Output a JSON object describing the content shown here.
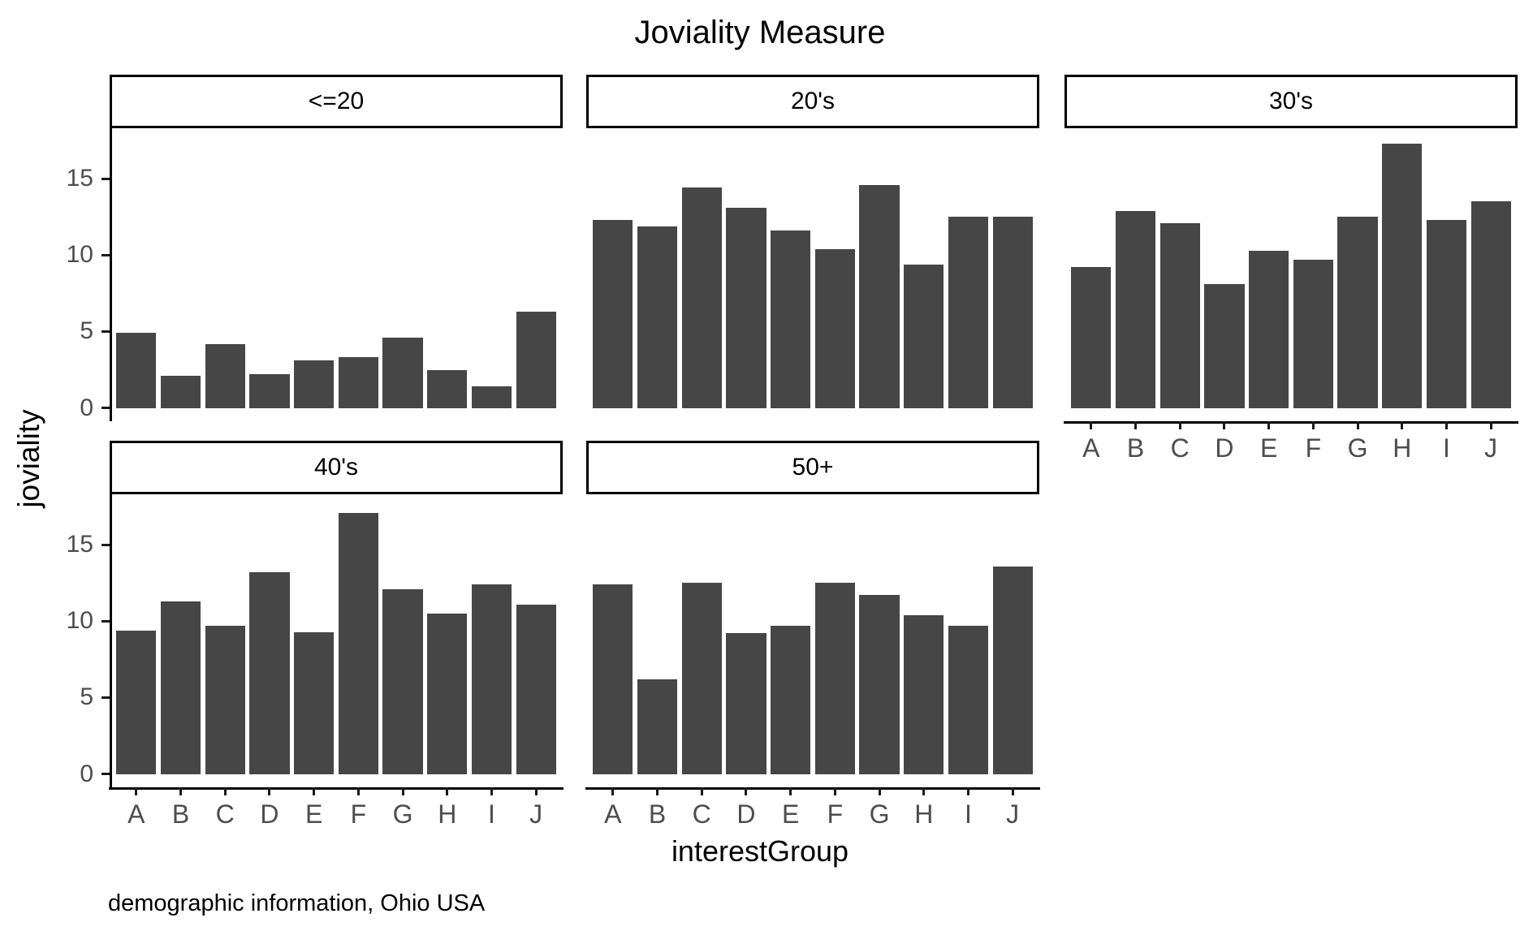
{
  "title": "Joviality Measure",
  "y_axis": {
    "title": "joviality",
    "tick_labels": [
      "0",
      "5",
      "10",
      "15"
    ],
    "tick_values": [
      0,
      5,
      10,
      15
    ]
  },
  "x_axis": {
    "title": "interestGroup"
  },
  "caption": "demographic information, Ohio USA",
  "colors": {
    "bar": "#464646",
    "axis_text": "#4d4d4d",
    "axis_line": "#000000",
    "text": "#000000",
    "background": "#ffffff"
  },
  "chart_data": {
    "type": "bar",
    "title": "Joviality Measure",
    "xlabel": "interestGroup",
    "ylabel": "joviality",
    "categories": [
      "A",
      "B",
      "C",
      "D",
      "E",
      "F",
      "G",
      "H",
      "I",
      "J"
    ],
    "ylim": [
      0,
      18.3
    ],
    "grid": false,
    "legend": "none",
    "facets": [
      {
        "label": "<=20",
        "row": 0,
        "col": 0,
        "show_y_axis": true,
        "show_x_axis": false,
        "values": [
          4.9,
          2.1,
          4.2,
          2.2,
          3.1,
          3.3,
          4.6,
          2.5,
          1.4,
          6.3
        ]
      },
      {
        "label": "20's",
        "row": 0,
        "col": 1,
        "show_y_axis": false,
        "show_x_axis": false,
        "values": [
          12.3,
          11.9,
          14.4,
          13.1,
          11.6,
          10.4,
          14.6,
          9.4,
          12.5,
          12.5
        ]
      },
      {
        "label": "30's",
        "row": 0,
        "col": 2,
        "show_y_axis": false,
        "show_x_axis": true,
        "values": [
          9.2,
          12.9,
          12.1,
          8.1,
          10.3,
          9.7,
          12.5,
          17.3,
          12.3,
          13.5
        ]
      },
      {
        "label": "40's",
        "row": 1,
        "col": 0,
        "show_y_axis": true,
        "show_x_axis": true,
        "values": [
          9.4,
          11.3,
          9.7,
          13.2,
          9.3,
          17.1,
          12.1,
          10.5,
          12.4,
          11.1
        ]
      },
      {
        "label": "50+",
        "row": 1,
        "col": 1,
        "show_y_axis": false,
        "show_x_axis": true,
        "values": [
          12.4,
          6.2,
          12.5,
          9.2,
          9.7,
          12.5,
          11.7,
          10.4,
          9.7,
          13.6
        ]
      }
    ]
  }
}
